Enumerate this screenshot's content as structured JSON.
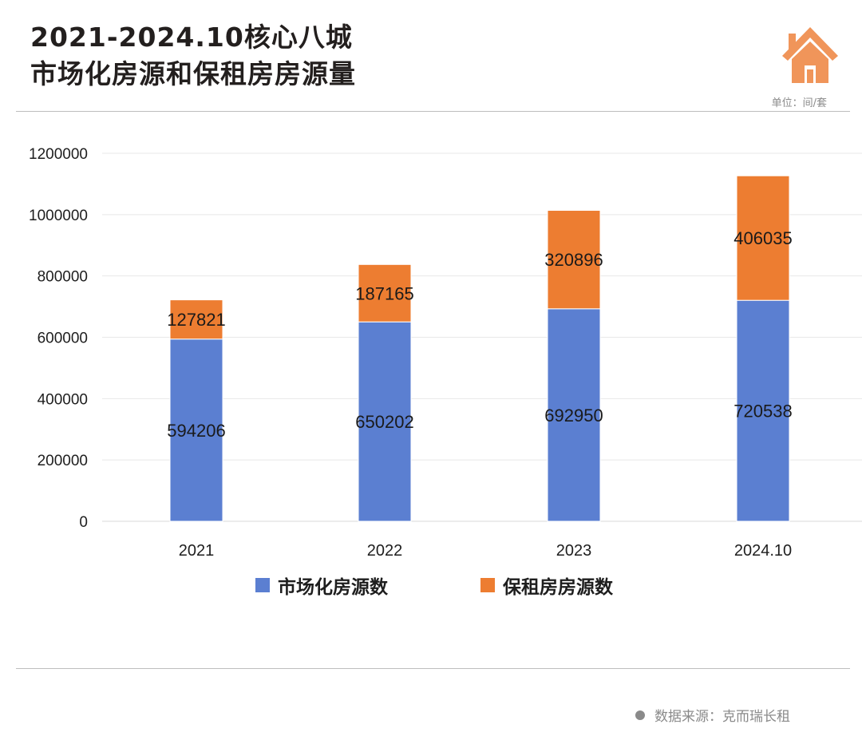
{
  "header": {
    "title_line1": "2021-2024.10核心八城",
    "title_line2": "市场化房源和保租房房源量",
    "unit": "单位：间/套",
    "logo_icon": "house-icon"
  },
  "footer": {
    "source": "数据来源：克而瑞长租"
  },
  "colors": {
    "market": "#5b7fd1",
    "affordable": "#ed7d31",
    "house_icon": "#f0955a"
  },
  "chart_data": {
    "type": "bar",
    "stacked": true,
    "title": "2021-2024.10核心八城 市场化房源和保租房房源量",
    "xlabel": "",
    "ylabel": "",
    "categories": [
      "2021",
      "2022",
      "2023",
      "2024.10"
    ],
    "series": [
      {
        "name": "市场化房源数",
        "values": [
          594206,
          650202,
          692950,
          720538
        ]
      },
      {
        "name": "保租房房源数",
        "values": [
          127821,
          187165,
          320896,
          406035
        ]
      }
    ],
    "ylim": [
      0,
      1200000
    ],
    "yticks": [
      "0",
      "200000",
      "400000",
      "600000",
      "800000",
      "1000000",
      "1200000"
    ],
    "ytick_values": [
      0,
      200000,
      400000,
      600000,
      800000,
      1000000,
      1200000
    ],
    "data_labels": [
      [
        "594206",
        "650202",
        "692950",
        "720538"
      ],
      [
        "127821",
        "187165",
        "320896",
        "406035"
      ]
    ],
    "grid": true,
    "legend_position": "bottom"
  }
}
